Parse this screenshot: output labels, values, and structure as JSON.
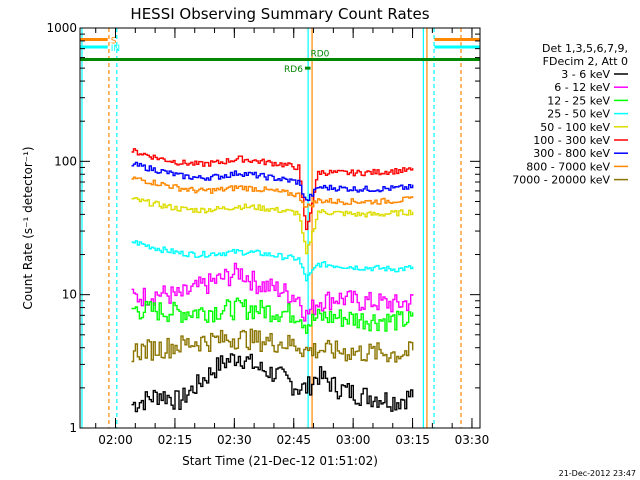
{
  "chart_data": {
    "type": "line",
    "title": "HESSI Observing Summary Count Rates",
    "xlabel": "Start Time (21-Dec-12 01:51:02)",
    "ylabel": "Count Rate (s⁻¹ detector⁻¹)",
    "yscale": "log",
    "ylim": [
      1,
      1000
    ],
    "xlim_minutes": [
      0,
      101
    ],
    "x_ticks": [
      {
        "label": "02:00",
        "minutes": 8.97
      },
      {
        "label": "02:15",
        "minutes": 23.97
      },
      {
        "label": "02:30",
        "minutes": 38.97
      },
      {
        "label": "02:45",
        "minutes": 53.97
      },
      {
        "label": "03:00",
        "minutes": 68.97
      },
      {
        "label": "03:15",
        "minutes": 83.97
      },
      {
        "label": "03:30",
        "minutes": 98.97
      }
    ],
    "y_ticks": [
      {
        "label": "1",
        "value": 1
      },
      {
        "label": "10",
        "value": 10
      },
      {
        "label": "100",
        "value": 100
      },
      {
        "label": "1000",
        "value": 1000
      }
    ],
    "legend_header": [
      "Det 1,3,5,6,7,9,",
      "FDecim 2, Att 0"
    ],
    "legend_placement": "right",
    "series": [
      {
        "name": "3 - 6 keV",
        "color": "#000000",
        "x": [
          13,
          20,
          25,
          30,
          35,
          40,
          45,
          50,
          55,
          57,
          60,
          65,
          70,
          75,
          80,
          84
        ],
        "values": [
          1.5,
          1.8,
          1.6,
          2.2,
          3.0,
          3.5,
          2.8,
          2.5,
          2.0,
          2.0,
          2.5,
          2.0,
          1.8,
          1.7,
          1.6,
          1.8
        ]
      },
      {
        "name": "6 - 12 keV",
        "color": "#ff00ff",
        "x": [
          13,
          20,
          25,
          30,
          35,
          40,
          45,
          50,
          55,
          57,
          60,
          65,
          70,
          75,
          80,
          84
        ],
        "values": [
          9.5,
          10.2,
          9.8,
          11.5,
          13.0,
          15.0,
          12.0,
          11.0,
          9.5,
          7.0,
          9.0,
          9.5,
          9.0,
          8.8,
          8.5,
          9.0
        ]
      },
      {
        "name": "12 - 25 keV",
        "color": "#00ff00",
        "x": [
          13,
          20,
          25,
          30,
          35,
          40,
          45,
          50,
          55,
          57,
          60,
          65,
          70,
          75,
          80,
          84
        ],
        "values": [
          7.8,
          7.6,
          7.4,
          7.5,
          7.7,
          8.0,
          7.8,
          7.5,
          7.2,
          6.0,
          6.8,
          6.8,
          6.6,
          6.5,
          6.4,
          6.5
        ]
      },
      {
        "name": "25 - 50 keV",
        "color": "#00ffff",
        "x": [
          13,
          20,
          25,
          30,
          35,
          40,
          45,
          50,
          55,
          57,
          60,
          65,
          70,
          75,
          80,
          84
        ],
        "values": [
          25,
          22,
          20.5,
          20,
          20.5,
          21,
          20.5,
          19.5,
          18.5,
          13,
          17,
          16.5,
          16,
          15.8,
          15.5,
          16
        ]
      },
      {
        "name": "50 - 100 keV",
        "color": "#dddd00",
        "x": [
          13,
          20,
          25,
          30,
          35,
          40,
          45,
          50,
          55,
          57,
          60,
          65,
          70,
          75,
          80,
          84
        ],
        "values": [
          52,
          47,
          44,
          43,
          44,
          46,
          45,
          43,
          41,
          20,
          42,
          41,
          40,
          40,
          41,
          42
        ]
      },
      {
        "name": "100 - 300 keV",
        "color": "#ff0000",
        "x": [
          13,
          20,
          25,
          30,
          35,
          40,
          45,
          50,
          55,
          57,
          60,
          65,
          70,
          75,
          80,
          84
        ],
        "values": [
          120,
          105,
          98,
          95,
          98,
          105,
          100,
          96,
          90,
          30,
          83,
          82,
          82,
          83,
          85,
          86
        ]
      },
      {
        "name": "300 - 800 keV",
        "color": "#0000ff",
        "x": [
          13,
          20,
          25,
          30,
          35,
          40,
          45,
          50,
          55,
          57,
          60,
          65,
          70,
          75,
          80,
          84
        ],
        "values": [
          95,
          85,
          78,
          75,
          77,
          82,
          78,
          74,
          70,
          50,
          64,
          63,
          62,
          62,
          63,
          64
        ]
      },
      {
        "name": "800 - 7000 keV",
        "color": "#ff8800",
        "x": [
          13,
          20,
          25,
          30,
          35,
          40,
          45,
          50,
          55,
          57,
          60,
          65,
          70,
          75,
          80,
          84
        ],
        "values": [
          75,
          68,
          63,
          60,
          61,
          64,
          62,
          59,
          56,
          45,
          51,
          50,
          50,
          50,
          51,
          52
        ]
      },
      {
        "name": "7000 - 20000 keV",
        "color": "#8b7500",
        "x": [
          13,
          20,
          25,
          30,
          35,
          40,
          45,
          50,
          55,
          57,
          60,
          65,
          70,
          75,
          80,
          84
        ],
        "values": [
          3.8,
          4.0,
          4.2,
          4.5,
          4.6,
          4.8,
          4.6,
          4.4,
          4.2,
          3.8,
          3.9,
          3.8,
          3.7,
          3.7,
          3.6,
          3.8
        ]
      }
    ],
    "flags": [
      {
        "label": "S",
        "color": "#ff8800",
        "y_value": 820,
        "segments": [
          [
            0,
            7
          ],
          [
            89.5,
            101
          ]
        ]
      },
      {
        "label": "IN",
        "color": "#00ffff",
        "y_value": 720,
        "segments": [
          [
            0,
            7
          ],
          [
            89.5,
            101
          ]
        ]
      },
      {
        "label": "RD0",
        "color": "#008800",
        "y_value": 580,
        "segments": [
          [
            0,
            101
          ]
        ]
      },
      {
        "label": "RD6",
        "color": "#008800",
        "y_value": 500,
        "segments": [
          [
            56.8,
            58.2
          ]
        ]
      }
    ],
    "vlines": [
      {
        "minutes": 0.5,
        "color": "#00ffff",
        "style": "solid"
      },
      {
        "minutes": 7.3,
        "color": "#ff8800",
        "style": "dashed"
      },
      {
        "minutes": 9.3,
        "color": "#00ffff",
        "style": "dashed"
      },
      {
        "minutes": 57.6,
        "color": "#00ffff",
        "style": "solid"
      },
      {
        "minutes": 58.6,
        "color": "#ff8800",
        "style": "solid"
      },
      {
        "minutes": 86.7,
        "color": "#00ffff",
        "style": "solid"
      },
      {
        "minutes": 87.6,
        "color": "#ff8800",
        "style": "solid"
      },
      {
        "minutes": 89.4,
        "color": "#00ffff",
        "style": "dashed"
      },
      {
        "minutes": 96.2,
        "color": "#ff8800",
        "style": "dashed"
      }
    ]
  },
  "footer_date": "21-Dec-2012 23:47"
}
